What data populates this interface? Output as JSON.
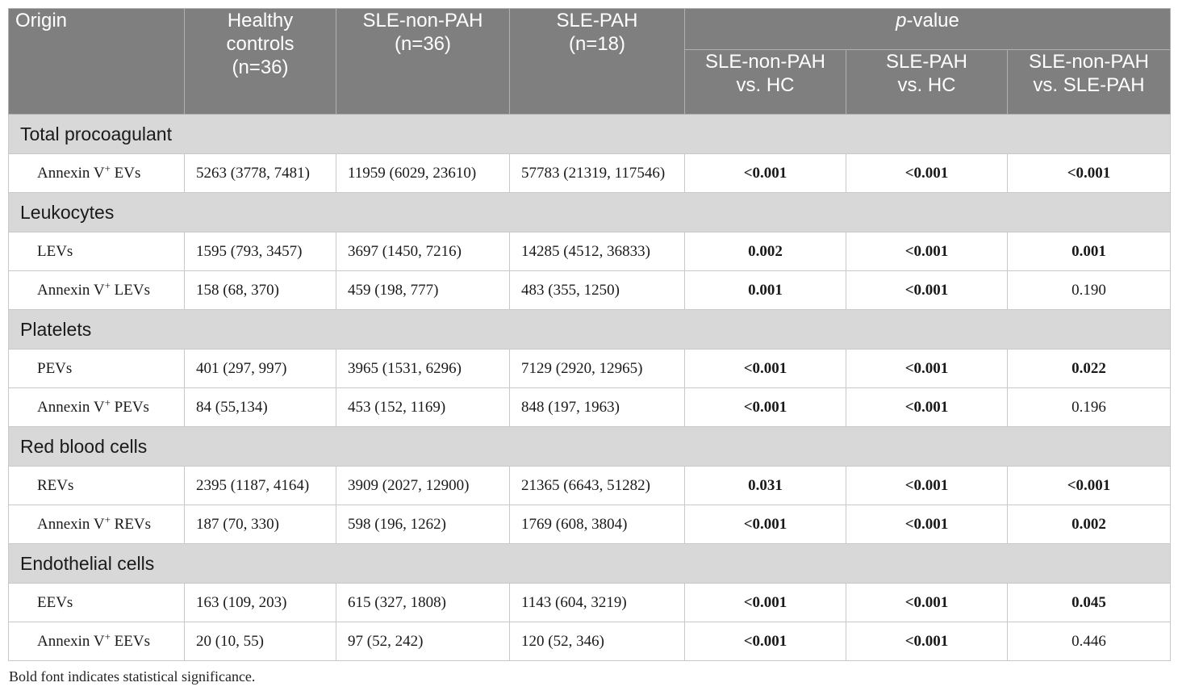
{
  "header": {
    "origin": "Origin",
    "healthy_controls": [
      "Healthy",
      "controls",
      "(n=36)"
    ],
    "sle_non_pah": [
      "SLE-non-PAH",
      "(n=36)"
    ],
    "sle_pah": [
      "SLE-PAH",
      "(n=18)"
    ],
    "pvalue_italic": "p",
    "pvalue_rest": "-value",
    "comp1": [
      "SLE-non-PAH",
      "vs. HC"
    ],
    "comp2": [
      "SLE-PAH",
      "vs. HC"
    ],
    "comp3": [
      "SLE-non-PAH",
      "vs. SLE-PAH"
    ]
  },
  "sections": [
    {
      "title": "Total procoagulant",
      "rows": [
        {
          "name": "Annexin V",
          "sup": "+",
          "suffix": " EVs",
          "hc": "5263 (3778, 7481)",
          "nonpah": "11959 (6029, 23610)",
          "pah": "57783 (21319, 117546)",
          "p1": "<0.001",
          "p1_bold": true,
          "p2": "<0.001",
          "p2_bold": true,
          "p3": "<0.001",
          "p3_bold": true
        }
      ]
    },
    {
      "title": "Leukocytes",
      "rows": [
        {
          "name": "LEVs",
          "sup": "",
          "suffix": "",
          "hc": "1595 (793, 3457)",
          "nonpah": "3697 (1450, 7216)",
          "pah": "14285 (4512, 36833)",
          "p1": "0.002",
          "p1_bold": true,
          "p2": "<0.001",
          "p2_bold": true,
          "p3": "0.001",
          "p3_bold": true
        },
        {
          "name": "Annexin V",
          "sup": "+",
          "suffix": " LEVs",
          "hc": "158 (68, 370)",
          "nonpah": "459 (198, 777)",
          "pah": "483 (355, 1250)",
          "p1": "0.001",
          "p1_bold": true,
          "p2": "<0.001",
          "p2_bold": true,
          "p3": "0.190",
          "p3_bold": false
        }
      ]
    },
    {
      "title": "Platelets",
      "rows": [
        {
          "name": "PEVs",
          "sup": "",
          "suffix": "",
          "hc": "401 (297, 997)",
          "nonpah": "3965 (1531, 6296)",
          "pah": "7129 (2920, 12965)",
          "p1": "<0.001",
          "p1_bold": true,
          "p2": "<0.001",
          "p2_bold": true,
          "p3": "0.022",
          "p3_bold": true
        },
        {
          "name": "Annexin V",
          "sup": "+",
          "suffix": " PEVs",
          "hc": "84 (55,134)",
          "nonpah": "453 (152, 1169)",
          "pah": "848 (197, 1963)",
          "p1": "<0.001",
          "p1_bold": true,
          "p2": "<0.001",
          "p2_bold": true,
          "p3": "0.196",
          "p3_bold": false
        }
      ]
    },
    {
      "title": "Red blood cells",
      "rows": [
        {
          "name": "REVs",
          "sup": "",
          "suffix": "",
          "hc": "2395 (1187, 4164)",
          "nonpah": "3909 (2027, 12900)",
          "pah": "21365 (6643, 51282)",
          "p1": "0.031",
          "p1_bold": true,
          "p2": "<0.001",
          "p2_bold": true,
          "p3": "<0.001",
          "p3_bold": true
        },
        {
          "name": "Annexin V",
          "sup": "+",
          "suffix": " REVs",
          "hc": "187 (70, 330)",
          "nonpah": "598 (196, 1262)",
          "pah": "1769 (608, 3804)",
          "p1": "<0.001",
          "p1_bold": true,
          "p2": "<0.001",
          "p2_bold": true,
          "p3": "0.002",
          "p3_bold": true
        }
      ]
    },
    {
      "title": "Endothelial cells",
      "rows": [
        {
          "name": "EEVs",
          "sup": "",
          "suffix": "",
          "hc": "163 (109, 203)",
          "nonpah": "615 (327, 1808)",
          "pah": "1143 (604, 3219)",
          "p1": "<0.001",
          "p1_bold": true,
          "p2": "<0.001",
          "p2_bold": true,
          "p3": "0.045",
          "p3_bold": true
        },
        {
          "name": "Annexin V",
          "sup": "+",
          "suffix": " EEVs",
          "hc": "20 (10, 55)",
          "nonpah": "97 (52, 242)",
          "pah": "120 (52, 346)",
          "p1": "<0.001",
          "p1_bold": true,
          "p2": "<0.001",
          "p2_bold": true,
          "p3": "0.446",
          "p3_bold": false
        }
      ]
    }
  ],
  "footnote": "Bold font indicates statistical significance."
}
